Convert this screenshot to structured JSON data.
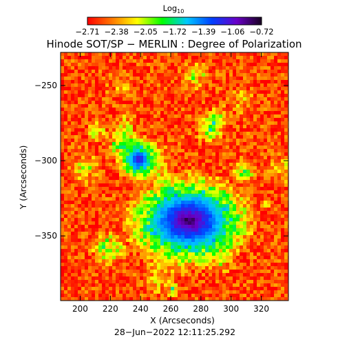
{
  "chart_data": {
    "type": "heatmap",
    "title": "Hinode SOT/SP − MERLIN : Degree of Polarization",
    "footer": "28−Jun−2022 12:11:25.292",
    "xlabel": "X (Arcseconds)",
    "ylabel": "Y (Arcseconds)",
    "xlim": [
      187,
      338
    ],
    "ylim": [
      -393,
      -228
    ],
    "xticks": [
      200,
      220,
      240,
      260,
      280,
      300,
      320
    ],
    "yticks": [
      -250,
      -300,
      -350
    ],
    "xtick_labels": [
      "200",
      "220",
      "240",
      "260",
      "280",
      "300",
      "320"
    ],
    "ytick_labels": [
      "−250",
      "−300",
      "−350"
    ],
    "colorbar": {
      "label": "Log",
      "label_sub": "10",
      "range": [
        -2.71,
        -0.72
      ],
      "tick_labels": [
        "−2.71",
        "−2.38",
        "−2.05",
        "−1.72",
        "−1.39",
        "−1.06",
        "−0.72"
      ],
      "colors": [
        "#ff0000",
        "#ff7a00",
        "#ffff00",
        "#00ff00",
        "#00c8ff",
        "#0040ff",
        "#6a00c8",
        "#180020"
      ]
    },
    "features": [
      {
        "name": "sunspot umbra",
        "x": 272,
        "y": -340,
        "log_value": -0.78
      },
      {
        "name": "pore",
        "x": 239,
        "y": -299,
        "log_value": -1.0
      }
    ],
    "background_log_value": -2.55
  }
}
